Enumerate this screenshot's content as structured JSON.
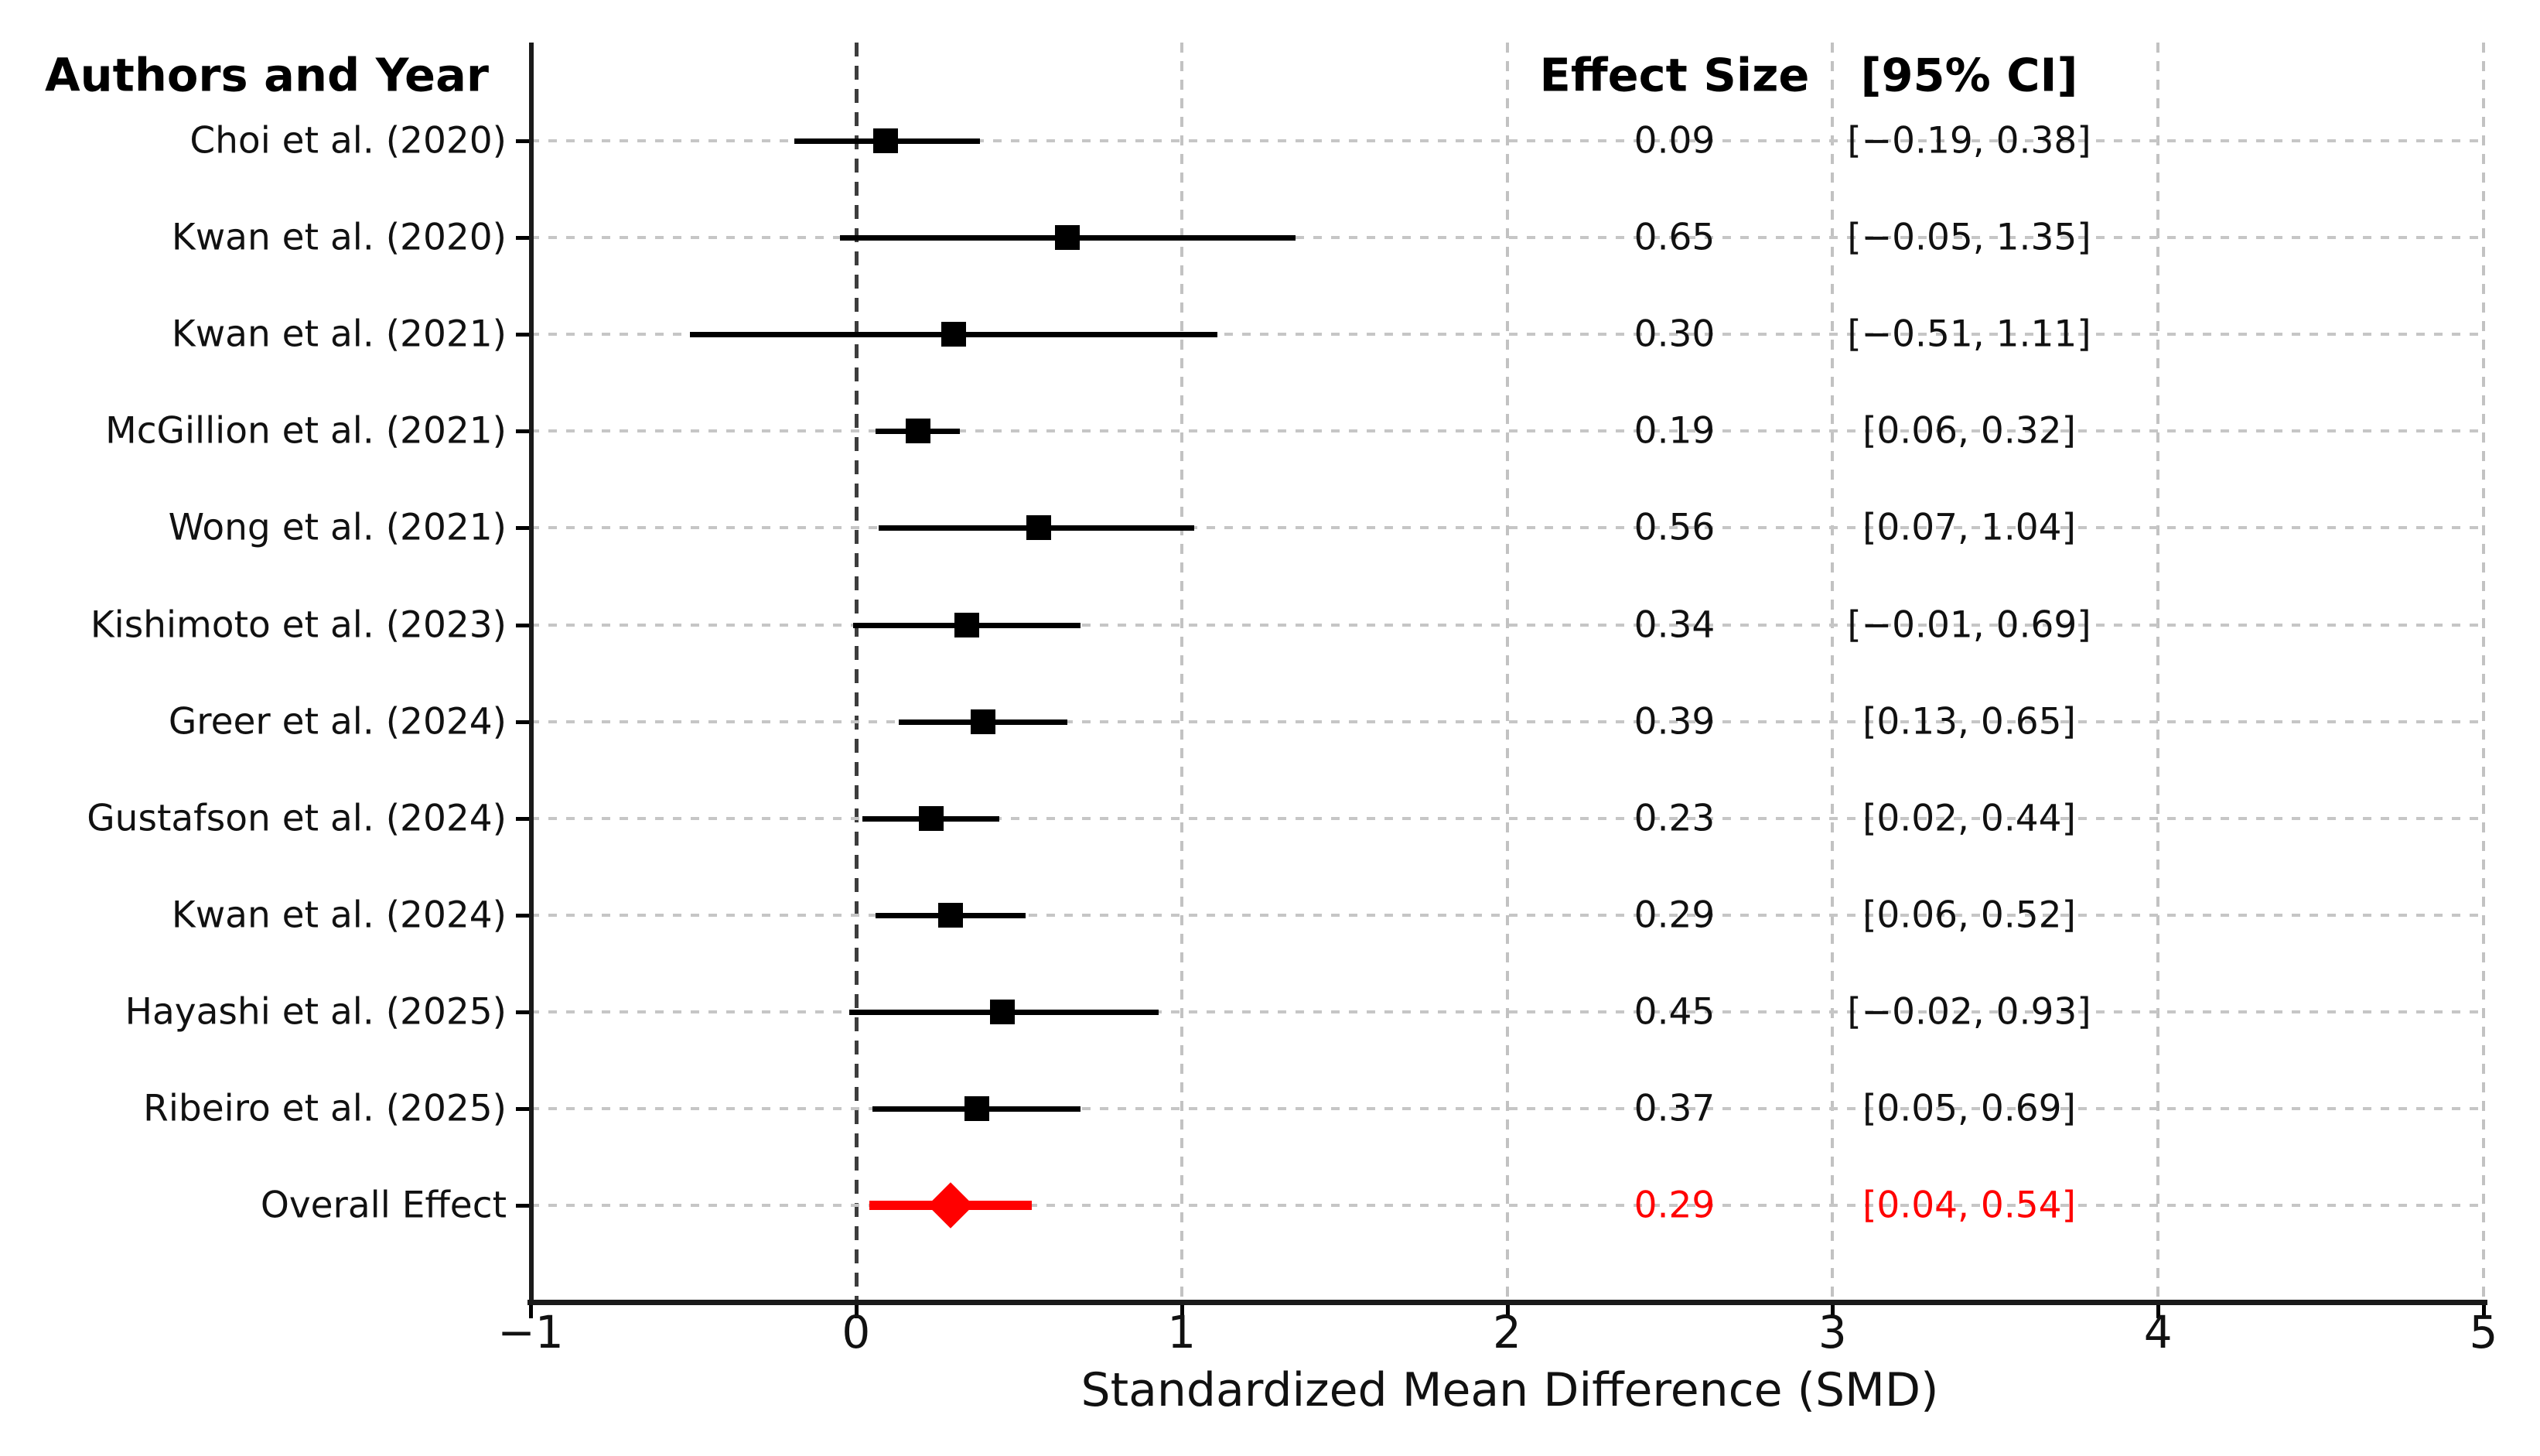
{
  "figure": {
    "background": "#ffffff"
  },
  "chart_data": {
    "type": "scatter",
    "subtype": "forest-plot-meta-analysis",
    "title": "",
    "columns": {
      "authors": "Authors and Year",
      "effect": "Effect Size",
      "ci": "[95% CI]"
    },
    "xlabel": "Standardized Mean Difference (SMD)",
    "xlim": [
      -1,
      5
    ],
    "x_ticks": [
      -1,
      0,
      1,
      2,
      3,
      4,
      5
    ],
    "x_tick_labels": [
      "−1",
      "0",
      "1",
      "2",
      "3",
      "4",
      "5"
    ],
    "grid": {
      "vertical_dashed_gridlines": true,
      "null_line_x": 0,
      "row_guides_dotted": true,
      "legend": "none"
    },
    "rows": [
      {
        "label": "Choi et al. (2020)",
        "effect": 0.09,
        "ci_low": -0.19,
        "ci_high": 0.38,
        "effect_text": "0.09",
        "ci_text": "[−0.19, 0.38]",
        "overall": false
      },
      {
        "label": "Kwan et al. (2020)",
        "effect": 0.65,
        "ci_low": -0.05,
        "ci_high": 1.35,
        "effect_text": "0.65",
        "ci_text": "[−0.05, 1.35]",
        "overall": false
      },
      {
        "label": "Kwan et al. (2021)",
        "effect": 0.3,
        "ci_low": -0.51,
        "ci_high": 1.11,
        "effect_text": "0.30",
        "ci_text": "[−0.51, 1.11]",
        "overall": false
      },
      {
        "label": "McGillion et al. (2021)",
        "effect": 0.19,
        "ci_low": 0.06,
        "ci_high": 0.32,
        "effect_text": "0.19",
        "ci_text": "[0.06, 0.32]",
        "overall": false
      },
      {
        "label": "Wong et al. (2021)",
        "effect": 0.56,
        "ci_low": 0.07,
        "ci_high": 1.04,
        "effect_text": "0.56",
        "ci_text": "[0.07, 1.04]",
        "overall": false
      },
      {
        "label": "Kishimoto et al. (2023)",
        "effect": 0.34,
        "ci_low": -0.01,
        "ci_high": 0.69,
        "effect_text": "0.34",
        "ci_text": "[−0.01, 0.69]",
        "overall": false
      },
      {
        "label": "Greer et al. (2024)",
        "effect": 0.39,
        "ci_low": 0.13,
        "ci_high": 0.65,
        "effect_text": "0.39",
        "ci_text": "[0.13, 0.65]",
        "overall": false
      },
      {
        "label": "Gustafson et al. (2024)",
        "effect": 0.23,
        "ci_low": 0.02,
        "ci_high": 0.44,
        "effect_text": "0.23",
        "ci_text": "[0.02, 0.44]",
        "overall": false
      },
      {
        "label": "Kwan et al. (2024)",
        "effect": 0.29,
        "ci_low": 0.06,
        "ci_high": 0.52,
        "effect_text": "0.29",
        "ci_text": "[0.06, 0.52]",
        "overall": false
      },
      {
        "label": "Hayashi et al. (2025)",
        "effect": 0.45,
        "ci_low": -0.02,
        "ci_high": 0.93,
        "effect_text": "0.45",
        "ci_text": "[−0.02, 0.93]",
        "overall": false
      },
      {
        "label": "Ribeiro et al. (2025)",
        "effect": 0.37,
        "ci_low": 0.05,
        "ci_high": 0.69,
        "effect_text": "0.37",
        "ci_text": "[0.05, 0.69]",
        "overall": false
      },
      {
        "label": "Overall Effect",
        "effect": 0.29,
        "ci_low": 0.04,
        "ci_high": 0.54,
        "effect_text": "0.29",
        "ci_text": "[0.04, 0.54]",
        "overall": true
      }
    ],
    "colors": {
      "study_marker": "#000000",
      "study_ci_line": "#000000",
      "overall": "#ff0000",
      "text": "#111111",
      "null_line": "#3d3d3d",
      "grid_line": "#c2c2c2",
      "row_guide": "#c6c6c6"
    }
  }
}
